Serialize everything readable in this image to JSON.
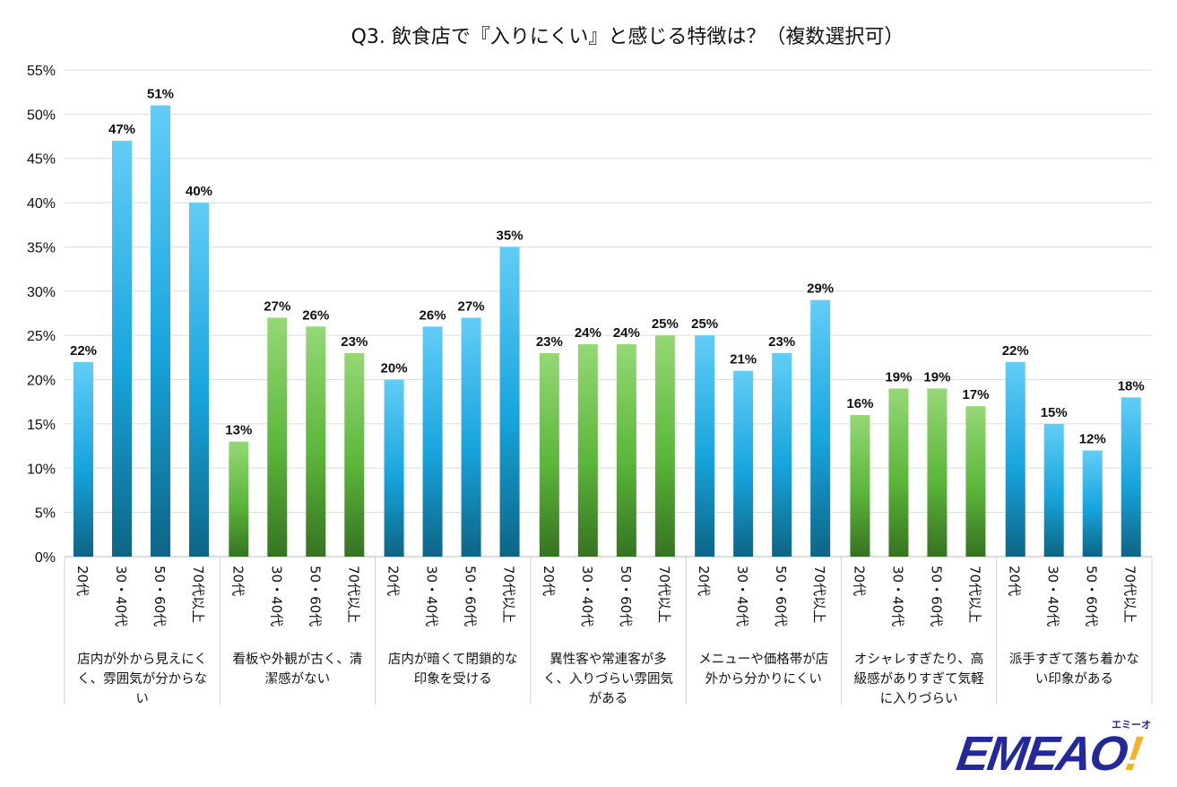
{
  "chart_data": {
    "type": "bar",
    "title": "Q3. 飲食店で『入りにくい』と感じる特徴は？（複数選択可）",
    "xlabel": "",
    "ylabel": "",
    "ylim": [
      0,
      55
    ],
    "yticks": [
      "0%",
      "5%",
      "10%",
      "15%",
      "20%",
      "25%",
      "30%",
      "35%",
      "40%",
      "45%",
      "50%",
      "55%"
    ],
    "grid": true,
    "legend": "none",
    "subcategories": [
      "20代",
      "30・40代",
      "50・60代",
      "70代以上"
    ],
    "groups": [
      {
        "label_lines": [
          "店内が外から見えにく",
          "く、雰囲気が分からな",
          "い"
        ],
        "values": [
          22,
          47,
          51,
          40
        ],
        "color": "blue"
      },
      {
        "label_lines": [
          "看板や外観が古く、清",
          "潔感がない"
        ],
        "values": [
          13,
          27,
          26,
          23
        ],
        "color": "green"
      },
      {
        "label_lines": [
          "店内が暗くて閉鎖的な",
          "印象を受ける"
        ],
        "values": [
          20,
          26,
          27,
          35
        ],
        "color": "blue"
      },
      {
        "label_lines": [
          "異性客や常連客が多",
          "く、入りづらい雰囲気",
          "がある"
        ],
        "values": [
          23,
          24,
          24,
          25
        ],
        "color": "green"
      },
      {
        "label_lines": [
          "メニューや価格帯が店",
          "外から分かりにくい"
        ],
        "values": [
          25,
          21,
          23,
          29
        ],
        "color": "blue"
      },
      {
        "label_lines": [
          "オシャレすぎたり、高",
          "級感がありすぎて気軽",
          "に入りづらい"
        ],
        "values": [
          16,
          19,
          19,
          17
        ],
        "color": "green"
      },
      {
        "label_lines": [
          "派手すぎて落ち着かな",
          "い印象がある"
        ],
        "values": [
          22,
          15,
          12,
          18
        ],
        "color": "blue"
      }
    ],
    "colors": {
      "blue": [
        "#62cdf7",
        "#17a4dd",
        "#0d6585"
      ],
      "green": [
        "#95d876",
        "#5bb63a",
        "#367321"
      ]
    }
  },
  "logo": {
    "text": "EMEAO!",
    "kana": "エミーオ"
  }
}
